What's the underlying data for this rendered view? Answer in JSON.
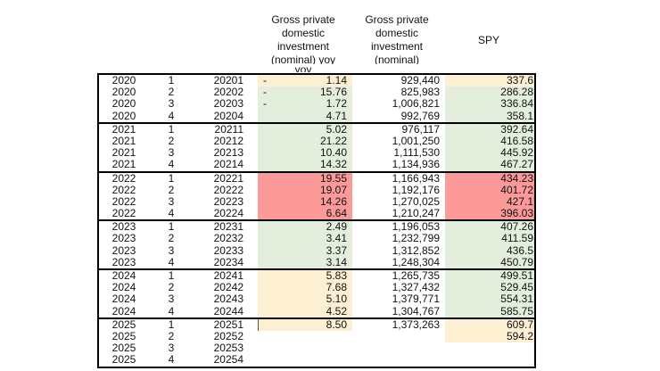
{
  "headers": {
    "yoy": [
      "Gross private",
      "domestic",
      "investment",
      "(nominal) yoy",
      "yoy"
    ],
    "nominal": [
      "Gross private",
      "domestic",
      "investment",
      "(nominal)"
    ],
    "spy": "SPY"
  },
  "palette": {
    "yellow": "#fdf0d2",
    "green": "#e3efdc",
    "red": "#fc9a9a",
    "none": "transparent"
  },
  "groups": [
    {
      "rows": [
        {
          "year": "2020",
          "q": "1",
          "code": "20201",
          "dash": "-",
          "yoy": "1.14",
          "yoy_color": "yellow",
          "nominal": "929,440",
          "spy": "337.6",
          "spy_color": "yellow"
        },
        {
          "year": "2020",
          "q": "2",
          "code": "20202",
          "dash": "-",
          "yoy": "15.76",
          "yoy_color": "green",
          "nominal": "825,983",
          "spy": "286.28",
          "spy_color": "green"
        },
        {
          "year": "2020",
          "q": "3",
          "code": "20203",
          "dash": "-",
          "yoy": "1.72",
          "yoy_color": "green",
          "nominal": "1,006,821",
          "spy": "336.84",
          "spy_color": "green"
        },
        {
          "year": "2020",
          "q": "4",
          "code": "20204",
          "dash": "",
          "yoy": "4.71",
          "yoy_color": "green",
          "nominal": "992,769",
          "spy": "358.1",
          "spy_color": "green"
        }
      ]
    },
    {
      "rows": [
        {
          "year": "2021",
          "q": "1",
          "code": "20211",
          "dash": "",
          "yoy": "5.02",
          "yoy_color": "green",
          "nominal": "976,117",
          "spy": "392.64",
          "spy_color": "green"
        },
        {
          "year": "2021",
          "q": "2",
          "code": "20212",
          "dash": "",
          "yoy": "21.22",
          "yoy_color": "green",
          "nominal": "1,001,250",
          "spy": "416.58",
          "spy_color": "green"
        },
        {
          "year": "2021",
          "q": "3",
          "code": "20213",
          "dash": "",
          "yoy": "10.40",
          "yoy_color": "green",
          "nominal": "1,111,530",
          "spy": "445.92",
          "spy_color": "green"
        },
        {
          "year": "2021",
          "q": "4",
          "code": "20214",
          "dash": "",
          "yoy": "14.32",
          "yoy_color": "green",
          "nominal": "1,134,936",
          "spy": "467.27",
          "spy_color": "green"
        }
      ]
    },
    {
      "rows": [
        {
          "year": "2022",
          "q": "1",
          "code": "20221",
          "dash": "",
          "yoy": "19.55",
          "yoy_color": "red",
          "nominal": "1,166,943",
          "spy": "434.23",
          "spy_color": "red"
        },
        {
          "year": "2022",
          "q": "2",
          "code": "20222",
          "dash": "",
          "yoy": "19.07",
          "yoy_color": "red",
          "nominal": "1,192,176",
          "spy": "401.72",
          "spy_color": "red"
        },
        {
          "year": "2022",
          "q": "3",
          "code": "20223",
          "dash": "",
          "yoy": "14.26",
          "yoy_color": "red",
          "nominal": "1,270,025",
          "spy": "427.1",
          "spy_color": "red"
        },
        {
          "year": "2022",
          "q": "4",
          "code": "20224",
          "dash": "",
          "yoy": "6.64",
          "yoy_color": "red",
          "nominal": "1,210,247",
          "spy": "396.03",
          "spy_color": "red"
        }
      ]
    },
    {
      "rows": [
        {
          "year": "2023",
          "q": "1",
          "code": "20231",
          "dash": "",
          "yoy": "2.49",
          "yoy_color": "green",
          "nominal": "1,196,053",
          "spy": "407.26",
          "spy_color": "green"
        },
        {
          "year": "2023",
          "q": "2",
          "code": "20232",
          "dash": "",
          "yoy": "3.41",
          "yoy_color": "green",
          "nominal": "1,232,799",
          "spy": "411.59",
          "spy_color": "green"
        },
        {
          "year": "2023",
          "q": "3",
          "code": "20233",
          "dash": "",
          "yoy": "3.37",
          "yoy_color": "green",
          "nominal": "1,312,852",
          "spy": "436.5",
          "spy_color": "green"
        },
        {
          "year": "2023",
          "q": "4",
          "code": "20234",
          "dash": "",
          "yoy": "3.14",
          "yoy_color": "green",
          "nominal": "1,248,304",
          "spy": "450.79",
          "spy_color": "green"
        }
      ]
    },
    {
      "rows": [
        {
          "year": "2024",
          "q": "1",
          "code": "20241",
          "dash": "",
          "yoy": "5.83",
          "yoy_color": "yellow",
          "nominal": "1,265,735",
          "spy": "499.51",
          "spy_color": "green"
        },
        {
          "year": "2024",
          "q": "2",
          "code": "20242",
          "dash": "",
          "yoy": "7.68",
          "yoy_color": "yellow",
          "nominal": "1,327,432",
          "spy": "529.45",
          "spy_color": "green"
        },
        {
          "year": "2024",
          "q": "3",
          "code": "20243",
          "dash": "",
          "yoy": "5.10",
          "yoy_color": "yellow",
          "nominal": "1,379,771",
          "spy": "554.31",
          "spy_color": "green"
        },
        {
          "year": "2024",
          "q": "4",
          "code": "20244",
          "dash": "",
          "yoy": "4.52",
          "yoy_color": "yellow",
          "nominal": "1,304,767",
          "spy": "585.75",
          "spy_color": "green"
        }
      ]
    },
    {
      "rows": [
        {
          "year": "2025",
          "q": "1",
          "code": "20251",
          "dash": "",
          "yoy": "8.50",
          "yoy_color": "yellow",
          "nominal": "1,373,263",
          "spy": "609.7",
          "spy_color": "yellow"
        },
        {
          "year": "2025",
          "q": "2",
          "code": "20252",
          "dash": "",
          "yoy": "",
          "yoy_color": "none",
          "nominal": "",
          "spy": "594.2",
          "spy_color": "yellow"
        },
        {
          "year": "2025",
          "q": "3",
          "code": "20253",
          "dash": "",
          "yoy": "",
          "yoy_color": "none",
          "nominal": "",
          "spy": "",
          "spy_color": "none"
        },
        {
          "year": "2025",
          "q": "4",
          "code": "20254",
          "dash": "",
          "yoy": "",
          "yoy_color": "none",
          "nominal": "",
          "spy": "",
          "spy_color": "none"
        }
      ]
    }
  ]
}
